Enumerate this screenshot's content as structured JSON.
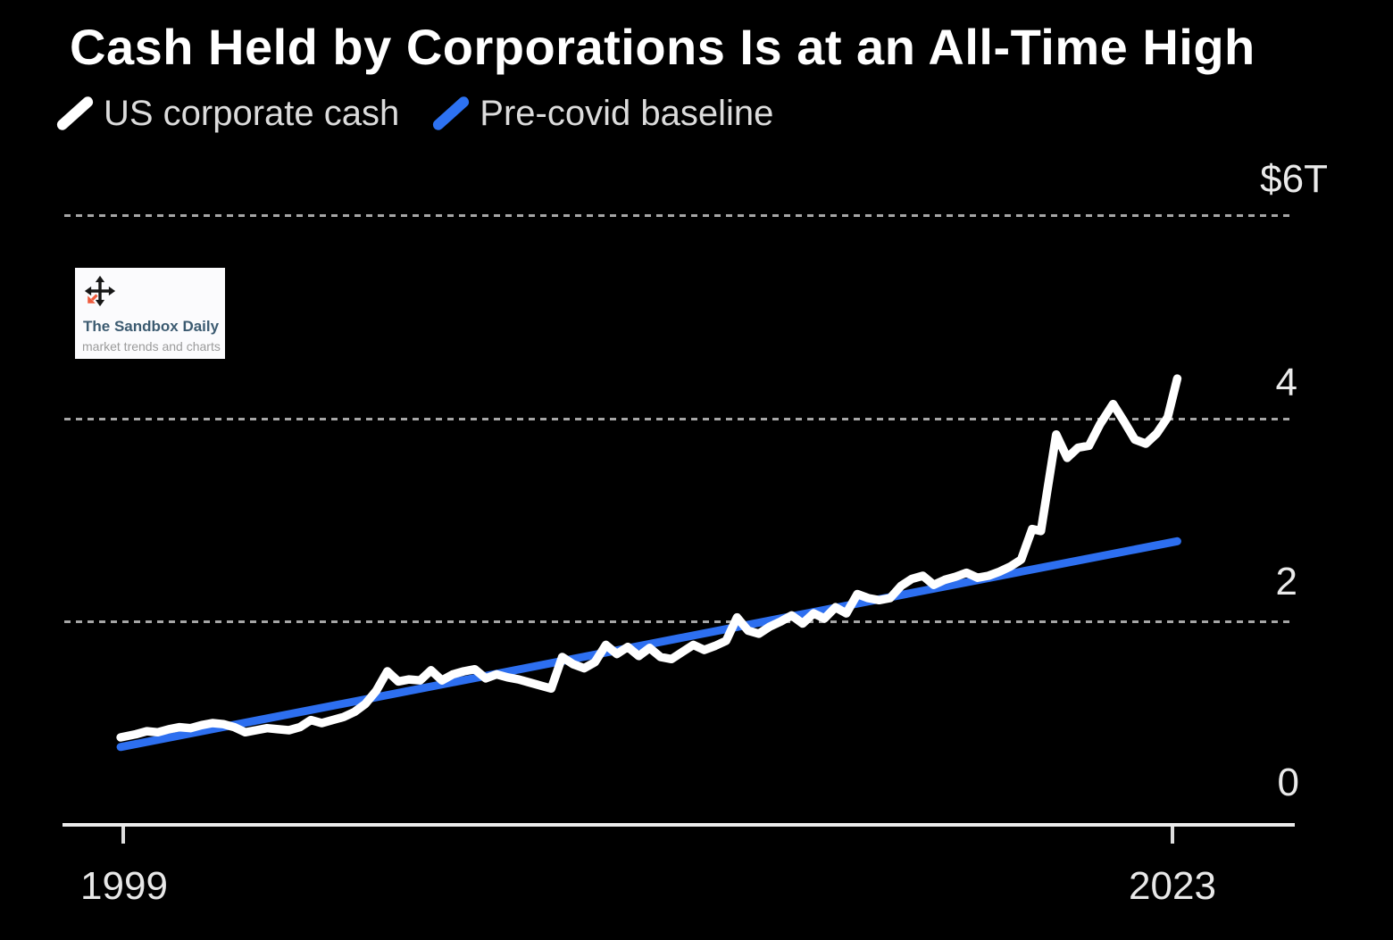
{
  "title": "Cash Held by Corporations Is at an All-Time High",
  "legend": [
    {
      "label": "US corporate cash",
      "color": "#ffffff"
    },
    {
      "label": "Pre-covid baseline",
      "color": "#2d72f2"
    }
  ],
  "y_axis": {
    "labels": [
      "$6T",
      "4",
      "2",
      "0"
    ]
  },
  "x_axis": {
    "labels": [
      "1999",
      "2023"
    ]
  },
  "watermark": {
    "icon": "move-arrows-icon",
    "title": "The Sandbox Daily",
    "subtitle": "market trends and charts",
    "accent_color": "#ef5b3d",
    "title_color": "#3c5b71"
  },
  "colors": {
    "background": "#000000",
    "us_corporate_cash_line": "#ffffff",
    "pre_covid_baseline_line": "#2d6ff0",
    "gridline": "#a6a6a6",
    "axis": "#ebebeb"
  },
  "chart_data": {
    "type": "line",
    "title": "Cash Held by Corporations Is at an All-Time High",
    "unit": "trillions of US dollars",
    "xlabel": "",
    "ylabel": "$T",
    "x_range": [
      1999,
      2023
    ],
    "ylim": [
      0,
      6
    ],
    "gridlines_y": [
      2,
      4,
      6
    ],
    "grid": "dashed-horizontal",
    "legend_position": "top-left",
    "series": [
      {
        "name": "US corporate cash",
        "color": "#ffffff",
        "points": [
          [
            1998.9,
            0.87
          ],
          [
            1999.25,
            0.9
          ],
          [
            1999.5,
            0.93
          ],
          [
            1999.75,
            0.92
          ],
          [
            2000,
            0.95
          ],
          [
            2000.25,
            0.97
          ],
          [
            2000.5,
            0.96
          ],
          [
            2000.75,
            0.99
          ],
          [
            2001,
            1.01
          ],
          [
            2001.25,
            1.0
          ],
          [
            2001.5,
            0.97
          ],
          [
            2001.75,
            0.92
          ],
          [
            2002,
            0.94
          ],
          [
            2002.25,
            0.96
          ],
          [
            2002.5,
            0.95
          ],
          [
            2002.75,
            0.94
          ],
          [
            2003,
            0.97
          ],
          [
            2003.25,
            1.04
          ],
          [
            2003.5,
            1.01
          ],
          [
            2003.75,
            1.04
          ],
          [
            2004,
            1.07
          ],
          [
            2004.25,
            1.12
          ],
          [
            2004.5,
            1.2
          ],
          [
            2004.75,
            1.33
          ],
          [
            2005,
            1.52
          ],
          [
            2005.25,
            1.42
          ],
          [
            2005.5,
            1.44
          ],
          [
            2005.75,
            1.43
          ],
          [
            2006,
            1.53
          ],
          [
            2006.25,
            1.43
          ],
          [
            2006.5,
            1.49
          ],
          [
            2006.75,
            1.52
          ],
          [
            2007,
            1.54
          ],
          [
            2007.25,
            1.45
          ],
          [
            2007.5,
            1.49
          ],
          [
            2007.75,
            1.46
          ],
          [
            2008,
            1.44
          ],
          [
            2008.25,
            1.41
          ],
          [
            2008.5,
            1.38
          ],
          [
            2008.75,
            1.35
          ],
          [
            2009,
            1.66
          ],
          [
            2009.25,
            1.59
          ],
          [
            2009.5,
            1.55
          ],
          [
            2009.75,
            1.61
          ],
          [
            2010,
            1.78
          ],
          [
            2010.25,
            1.69
          ],
          [
            2010.5,
            1.76
          ],
          [
            2010.75,
            1.67
          ],
          [
            2011,
            1.75
          ],
          [
            2011.25,
            1.66
          ],
          [
            2011.5,
            1.64
          ],
          [
            2011.75,
            1.71
          ],
          [
            2012,
            1.78
          ],
          [
            2012.25,
            1.73
          ],
          [
            2012.5,
            1.77
          ],
          [
            2012.75,
            1.82
          ],
          [
            2013,
            2.05
          ],
          [
            2013.25,
            1.92
          ],
          [
            2013.5,
            1.89
          ],
          [
            2013.75,
            1.96
          ],
          [
            2014,
            2.01
          ],
          [
            2014.25,
            2.07
          ],
          [
            2014.5,
            1.99
          ],
          [
            2014.75,
            2.09
          ],
          [
            2015,
            2.04
          ],
          [
            2015.25,
            2.15
          ],
          [
            2015.5,
            2.09
          ],
          [
            2015.75,
            2.28
          ],
          [
            2016,
            2.24
          ],
          [
            2016.25,
            2.22
          ],
          [
            2016.5,
            2.24
          ],
          [
            2016.75,
            2.36
          ],
          [
            2017,
            2.43
          ],
          [
            2017.25,
            2.46
          ],
          [
            2017.5,
            2.37
          ],
          [
            2017.75,
            2.42
          ],
          [
            2018,
            2.45
          ],
          [
            2018.25,
            2.49
          ],
          [
            2018.5,
            2.44
          ],
          [
            2018.75,
            2.46
          ],
          [
            2019,
            2.5
          ],
          [
            2019.25,
            2.55
          ],
          [
            2019.5,
            2.62
          ],
          [
            2019.75,
            2.92
          ],
          [
            2019.95,
            2.9
          ],
          [
            2020.3,
            3.85
          ],
          [
            2020.55,
            3.62
          ],
          [
            2020.8,
            3.72
          ],
          [
            2021.05,
            3.74
          ],
          [
            2021.3,
            3.95
          ],
          [
            2021.6,
            4.15
          ],
          [
            2021.85,
            3.98
          ],
          [
            2022.1,
            3.8
          ],
          [
            2022.35,
            3.76
          ],
          [
            2022.6,
            3.86
          ],
          [
            2022.85,
            4.02
          ],
          [
            2023.07,
            4.4
          ]
        ]
      },
      {
        "name": "Pre-covid baseline",
        "color": "#2d6ff0",
        "points": [
          [
            1998.9,
            0.775
          ],
          [
            2023.07,
            2.8
          ]
        ]
      }
    ]
  }
}
